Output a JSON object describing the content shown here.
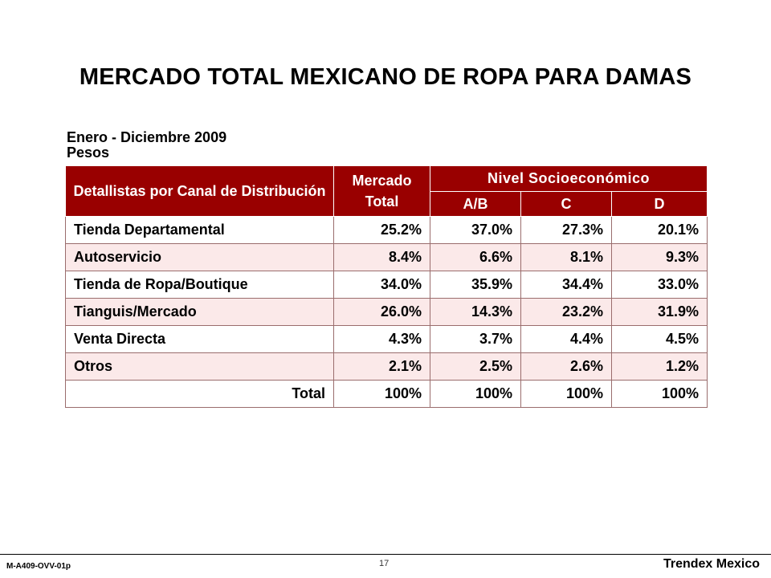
{
  "title": "MERCADO TOTAL MEXICANO DE ROPA PARA DAMAS",
  "subtitle": {
    "period": "Enero - Diciembre 2009",
    "unit": "Pesos"
  },
  "table": {
    "header": {
      "channel": "Detallistas por Canal de Distribución",
      "market": "Mercado Total",
      "nse": "Nivel Socioeconómico",
      "levels": [
        "A/B",
        "C",
        "D"
      ]
    },
    "rows": [
      {
        "label": "Tienda Departamental",
        "values": [
          "25.2%",
          "37.0%",
          "27.3%",
          "20.1%"
        ]
      },
      {
        "label": "Autoservicio",
        "values": [
          "8.4%",
          "6.6%",
          "8.1%",
          "9.3%"
        ]
      },
      {
        "label": "Tienda de Ropa/Boutique",
        "values": [
          "34.0%",
          "35.9%",
          "34.4%",
          "33.0%"
        ]
      },
      {
        "label": "Tianguis/Mercado",
        "values": [
          "26.0%",
          "14.3%",
          "23.2%",
          "31.9%"
        ]
      },
      {
        "label": "Venta Directa",
        "values": [
          "4.3%",
          "3.7%",
          "4.4%",
          "4.5%"
        ]
      },
      {
        "label": "Otros",
        "values": [
          "2.1%",
          "2.5%",
          "2.6%",
          "1.2%"
        ]
      },
      {
        "label": "Total",
        "values": [
          "100%",
          "100%",
          "100%",
          "100%"
        ]
      }
    ]
  },
  "footer": {
    "code": "M-A409-OVV-01p",
    "page": "17",
    "brand": "Trendex Mexico"
  },
  "colors": {
    "header_bg": "#990000",
    "band_row": "#fbe9e9"
  }
}
